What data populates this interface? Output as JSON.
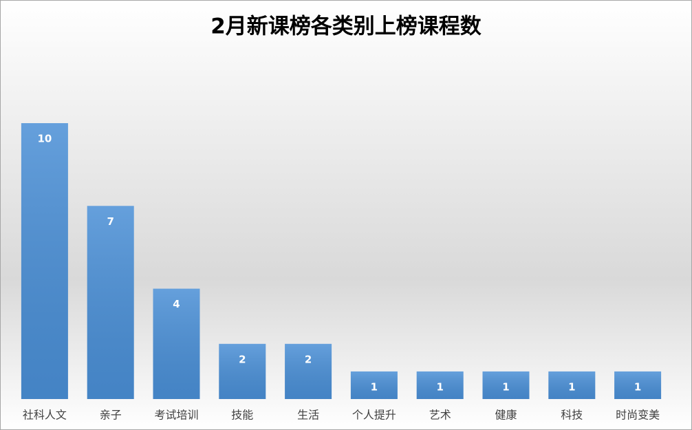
{
  "chart_data": {
    "type": "bar",
    "title": "2月新课榜各类别上榜课程数",
    "categories": [
      "社科人文",
      "亲子",
      "考试培训",
      "技能",
      "生活",
      "个人提升",
      "艺术",
      "健康",
      "科技",
      "时尚变美"
    ],
    "values": [
      10,
      7,
      4,
      2,
      2,
      1,
      1,
      1,
      1,
      1
    ],
    "color": "#4a8fd6"
  }
}
